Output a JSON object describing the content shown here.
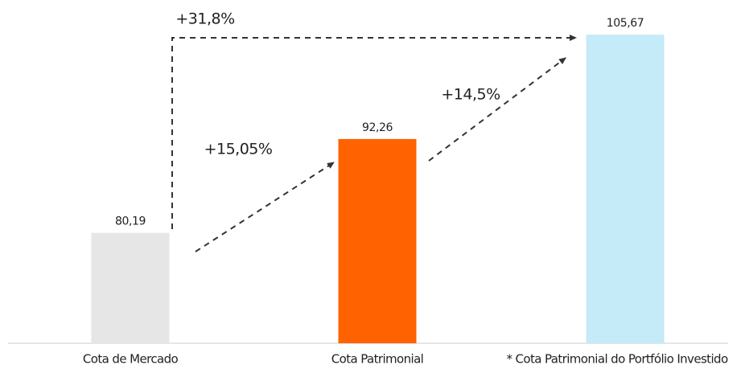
{
  "chart_data": {
    "type": "bar",
    "categories": [
      "Cota de Mercado",
      "Cota Patrimonial",
      "* Cota Patrimonial do Portfólio Investido"
    ],
    "values": [
      80.19,
      92.26,
      105.67
    ],
    "value_labels": [
      "80,19",
      "92,26",
      "105,67"
    ],
    "colors": [
      "#e6e6e6",
      "#ff6200",
      "#c5eaf8"
    ],
    "ylim": [
      66,
      106
    ],
    "annotations": [
      "+31,8%",
      "+15,05%",
      "+14,5%"
    ]
  }
}
